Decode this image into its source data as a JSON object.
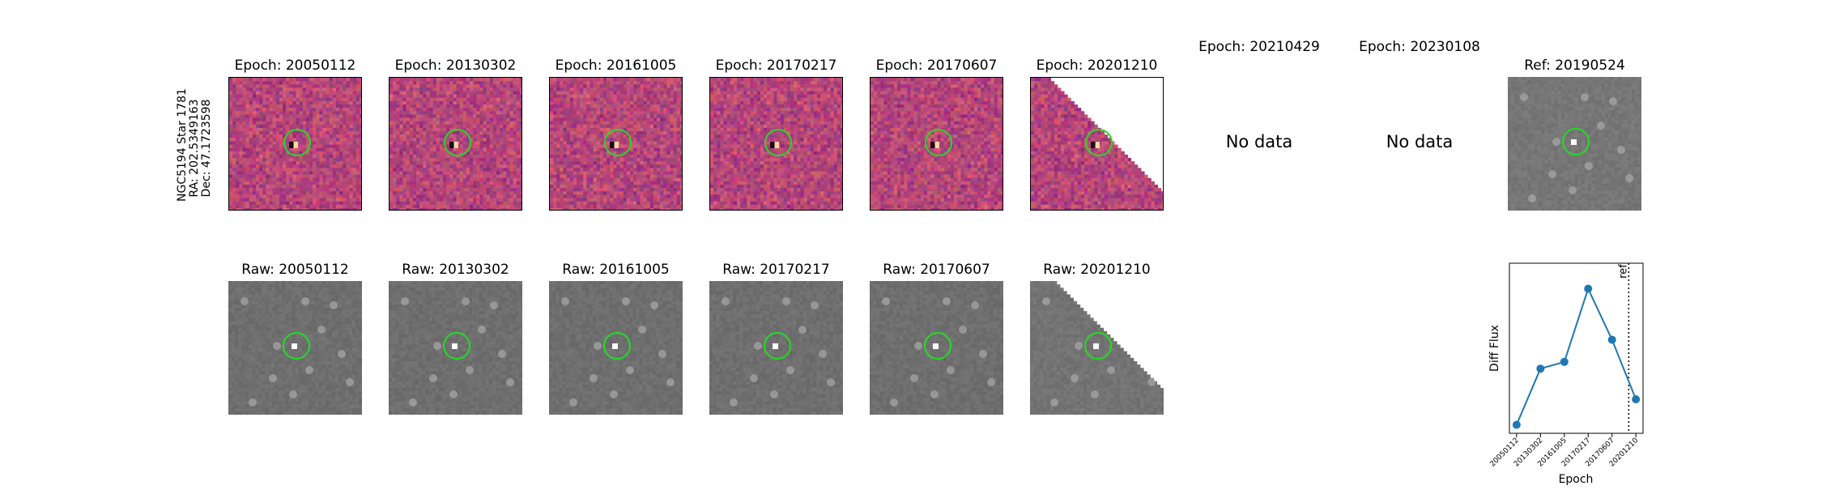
{
  "row_label": {
    "line1": "NGC5194 Star 1781",
    "line2": "RA: 202.5349163",
    "line3": "Dec: 47.1723598"
  },
  "diff_titles": [
    "Epoch: 20050112",
    "Epoch: 20130302",
    "Epoch: 20161005",
    "Epoch: 20170217",
    "Epoch: 20170607",
    "Epoch: 20201210",
    "Epoch: 20210429",
    "Epoch: 20230108"
  ],
  "no_data_text": "No data",
  "ref_title": "Ref: 20190524",
  "raw_titles": [
    "Raw: 20050112",
    "Raw: 20130302",
    "Raw: 20161005",
    "Raw: 20170217",
    "Raw: 20170607",
    "Raw: 20201210"
  ],
  "colors": {
    "circle": "#22dd22",
    "diff_base": "#b0457e",
    "raw_base": "#777777",
    "line": "#1f77b4"
  },
  "chart_data": {
    "type": "line",
    "xlabel": "Epoch",
    "ylabel": "Diff Flux",
    "categories": [
      "20050112",
      "20130302",
      "20161005",
      "20170217",
      "20170607",
      "20201210"
    ],
    "values": [
      0.05,
      0.38,
      0.42,
      0.85,
      0.55,
      0.2
    ],
    "ylim": [
      0,
      1
    ],
    "ref_line_label": "ref",
    "ref_line_x": 4.7,
    "grid": false
  }
}
